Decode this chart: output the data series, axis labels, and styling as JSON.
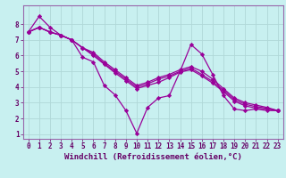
{
  "xlabel": "Windchill (Refroidissement éolien,°C)",
  "bg_color": "#c8f0f0",
  "line_color": "#990099",
  "grid_color": "#b0d8d8",
  "axis_color": "#660066",
  "spine_color": "#9966aa",
  "xlim": [
    -0.5,
    23.5
  ],
  "ylim": [
    0.7,
    9.2
  ],
  "yticks": [
    1,
    2,
    3,
    4,
    5,
    6,
    7,
    8
  ],
  "xticks": [
    0,
    1,
    2,
    3,
    4,
    5,
    6,
    7,
    8,
    9,
    10,
    11,
    12,
    13,
    14,
    15,
    16,
    17,
    18,
    19,
    20,
    21,
    22,
    23
  ],
  "series": [
    [
      7.5,
      8.5,
      7.8,
      7.3,
      7.0,
      5.9,
      5.6,
      4.1,
      3.5,
      2.5,
      1.05,
      2.7,
      3.3,
      3.45,
      5.0,
      6.7,
      6.1,
      4.8,
      3.45,
      2.6,
      2.5,
      2.6,
      2.5,
      2.5
    ],
    [
      7.5,
      7.8,
      7.5,
      7.3,
      7.0,
      6.5,
      6.2,
      5.6,
      5.1,
      4.6,
      4.1,
      4.3,
      4.6,
      4.8,
      5.1,
      5.3,
      5.0,
      4.5,
      3.9,
      3.3,
      3.0,
      2.85,
      2.7,
      2.5
    ],
    [
      7.5,
      7.8,
      7.5,
      7.3,
      7.0,
      6.5,
      6.1,
      5.5,
      5.0,
      4.5,
      4.0,
      4.2,
      4.5,
      4.7,
      5.0,
      5.2,
      4.8,
      4.35,
      3.8,
      3.2,
      2.9,
      2.75,
      2.65,
      2.5
    ],
    [
      7.5,
      7.8,
      7.5,
      7.3,
      7.0,
      6.5,
      6.0,
      5.45,
      4.9,
      4.4,
      3.9,
      4.1,
      4.3,
      4.6,
      4.95,
      5.1,
      4.7,
      4.25,
      3.7,
      3.1,
      2.8,
      2.65,
      2.6,
      2.5
    ]
  ],
  "marker": "D",
  "markersize": 2.2,
  "linewidth": 0.9,
  "tick_fontsize": 5.5,
  "xlabel_fontsize": 6.5
}
